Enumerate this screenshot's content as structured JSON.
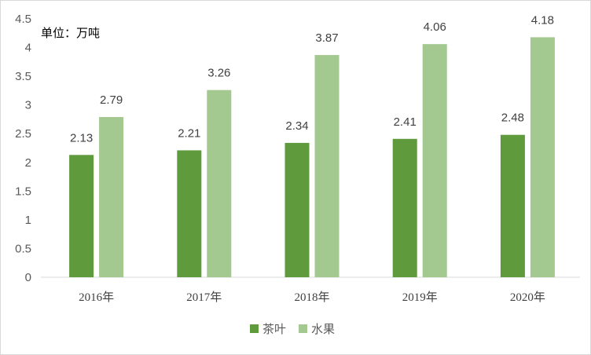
{
  "chart_data": {
    "type": "bar",
    "unit_label": "单位：万吨",
    "categories": [
      "2016年",
      "2017年",
      "2018年",
      "2019年",
      "2020年"
    ],
    "series": [
      {
        "name": "茶叶",
        "color": "#5f9a3c",
        "values": [
          2.13,
          2.21,
          2.34,
          2.41,
          2.48
        ]
      },
      {
        "name": "水果",
        "color": "#a3c890",
        "values": [
          2.79,
          3.26,
          3.87,
          4.06,
          4.18
        ]
      }
    ],
    "ylim": [
      0,
      4.5
    ],
    "yticks": [
      "0",
      "0.5",
      "1",
      "1.5",
      "2",
      "2.5",
      "3",
      "3.5",
      "4",
      "4.5"
    ],
    "grid": false,
    "legend_position": "bottom"
  }
}
